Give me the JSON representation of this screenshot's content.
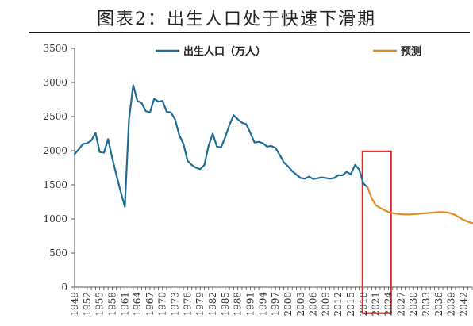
{
  "chart_data": {
    "type": "line",
    "title": "图表2：出生人口处于快速下滑期",
    "xlabel": "",
    "ylabel": "",
    "ylim": [
      0,
      3500
    ],
    "yticks": [
      0,
      500,
      1000,
      1500,
      2000,
      2500,
      3000,
      3500
    ],
    "xlim": [
      1949,
      2044
    ],
    "xticks": [
      1949,
      1952,
      1955,
      1958,
      1961,
      1964,
      1967,
      1970,
      1973,
      1976,
      1979,
      1982,
      1985,
      1988,
      1991,
      1994,
      1997,
      2000,
      2003,
      2006,
      2009,
      2012,
      2015,
      2018,
      2021,
      2024,
      2027,
      2030,
      2033,
      2036,
      2039,
      2042
    ],
    "grid": false,
    "legend_position": "top",
    "series": [
      {
        "name": "出生人口（万人）",
        "color": "#1f6d96",
        "points": [
          [
            1949,
            1950
          ],
          [
            1950,
            2020
          ],
          [
            1951,
            2100
          ],
          [
            1952,
            2110
          ],
          [
            1953,
            2150
          ],
          [
            1954,
            2260
          ],
          [
            1955,
            1980
          ],
          [
            1956,
            1970
          ],
          [
            1957,
            2170
          ],
          [
            1958,
            1890
          ],
          [
            1959,
            1640
          ],
          [
            1960,
            1400
          ],
          [
            1961,
            1180
          ],
          [
            1962,
            2460
          ],
          [
            1963,
            2960
          ],
          [
            1964,
            2730
          ],
          [
            1965,
            2700
          ],
          [
            1966,
            2580
          ],
          [
            1967,
            2560
          ],
          [
            1968,
            2760
          ],
          [
            1969,
            2720
          ],
          [
            1970,
            2730
          ],
          [
            1971,
            2570
          ],
          [
            1972,
            2560
          ],
          [
            1973,
            2460
          ],
          [
            1974,
            2230
          ],
          [
            1975,
            2100
          ],
          [
            1976,
            1850
          ],
          [
            1977,
            1790
          ],
          [
            1978,
            1750
          ],
          [
            1979,
            1730
          ],
          [
            1980,
            1790
          ],
          [
            1981,
            2070
          ],
          [
            1982,
            2250
          ],
          [
            1983,
            2060
          ],
          [
            1984,
            2050
          ],
          [
            1985,
            2200
          ],
          [
            1986,
            2380
          ],
          [
            1987,
            2520
          ],
          [
            1988,
            2460
          ],
          [
            1989,
            2410
          ],
          [
            1990,
            2390
          ],
          [
            1991,
            2260
          ],
          [
            1992,
            2120
          ],
          [
            1993,
            2130
          ],
          [
            1994,
            2110
          ],
          [
            1995,
            2060
          ],
          [
            1996,
            2070
          ],
          [
            1997,
            2040
          ],
          [
            1998,
            1940
          ],
          [
            1999,
            1830
          ],
          [
            2000,
            1770
          ],
          [
            2001,
            1700
          ],
          [
            2002,
            1650
          ],
          [
            2003,
            1600
          ],
          [
            2004,
            1590
          ],
          [
            2005,
            1620
          ],
          [
            2006,
            1585
          ],
          [
            2007,
            1595
          ],
          [
            2008,
            1610
          ],
          [
            2009,
            1600
          ],
          [
            2010,
            1590
          ],
          [
            2011,
            1600
          ],
          [
            2012,
            1640
          ],
          [
            2013,
            1640
          ],
          [
            2014,
            1690
          ],
          [
            2015,
            1655
          ],
          [
            2016,
            1790
          ],
          [
            2017,
            1725
          ],
          [
            2018,
            1520
          ],
          [
            2019,
            1465
          ]
        ]
      },
      {
        "name": "预测",
        "color": "#e08a25",
        "points": [
          [
            2019,
            1465
          ],
          [
            2020,
            1300
          ],
          [
            2021,
            1200
          ],
          [
            2022,
            1160
          ],
          [
            2023,
            1130
          ],
          [
            2024,
            1100
          ],
          [
            2025,
            1085
          ],
          [
            2026,
            1075
          ],
          [
            2027,
            1070
          ],
          [
            2028,
            1065
          ],
          [
            2029,
            1065
          ],
          [
            2030,
            1070
          ],
          [
            2031,
            1075
          ],
          [
            2032,
            1080
          ],
          [
            2033,
            1085
          ],
          [
            2034,
            1090
          ],
          [
            2035,
            1095
          ],
          [
            2036,
            1100
          ],
          [
            2037,
            1100
          ],
          [
            2038,
            1095
          ],
          [
            2039,
            1080
          ],
          [
            2040,
            1055
          ],
          [
            2041,
            1020
          ],
          [
            2042,
            985
          ],
          [
            2043,
            960
          ],
          [
            2044,
            940
          ]
        ]
      }
    ],
    "annotations": [
      {
        "type": "rectangle",
        "x_range": [
          2017.8,
          2024.6
        ],
        "y_range": [
          -380,
          1990
        ],
        "color": "#d32f2f"
      }
    ]
  }
}
